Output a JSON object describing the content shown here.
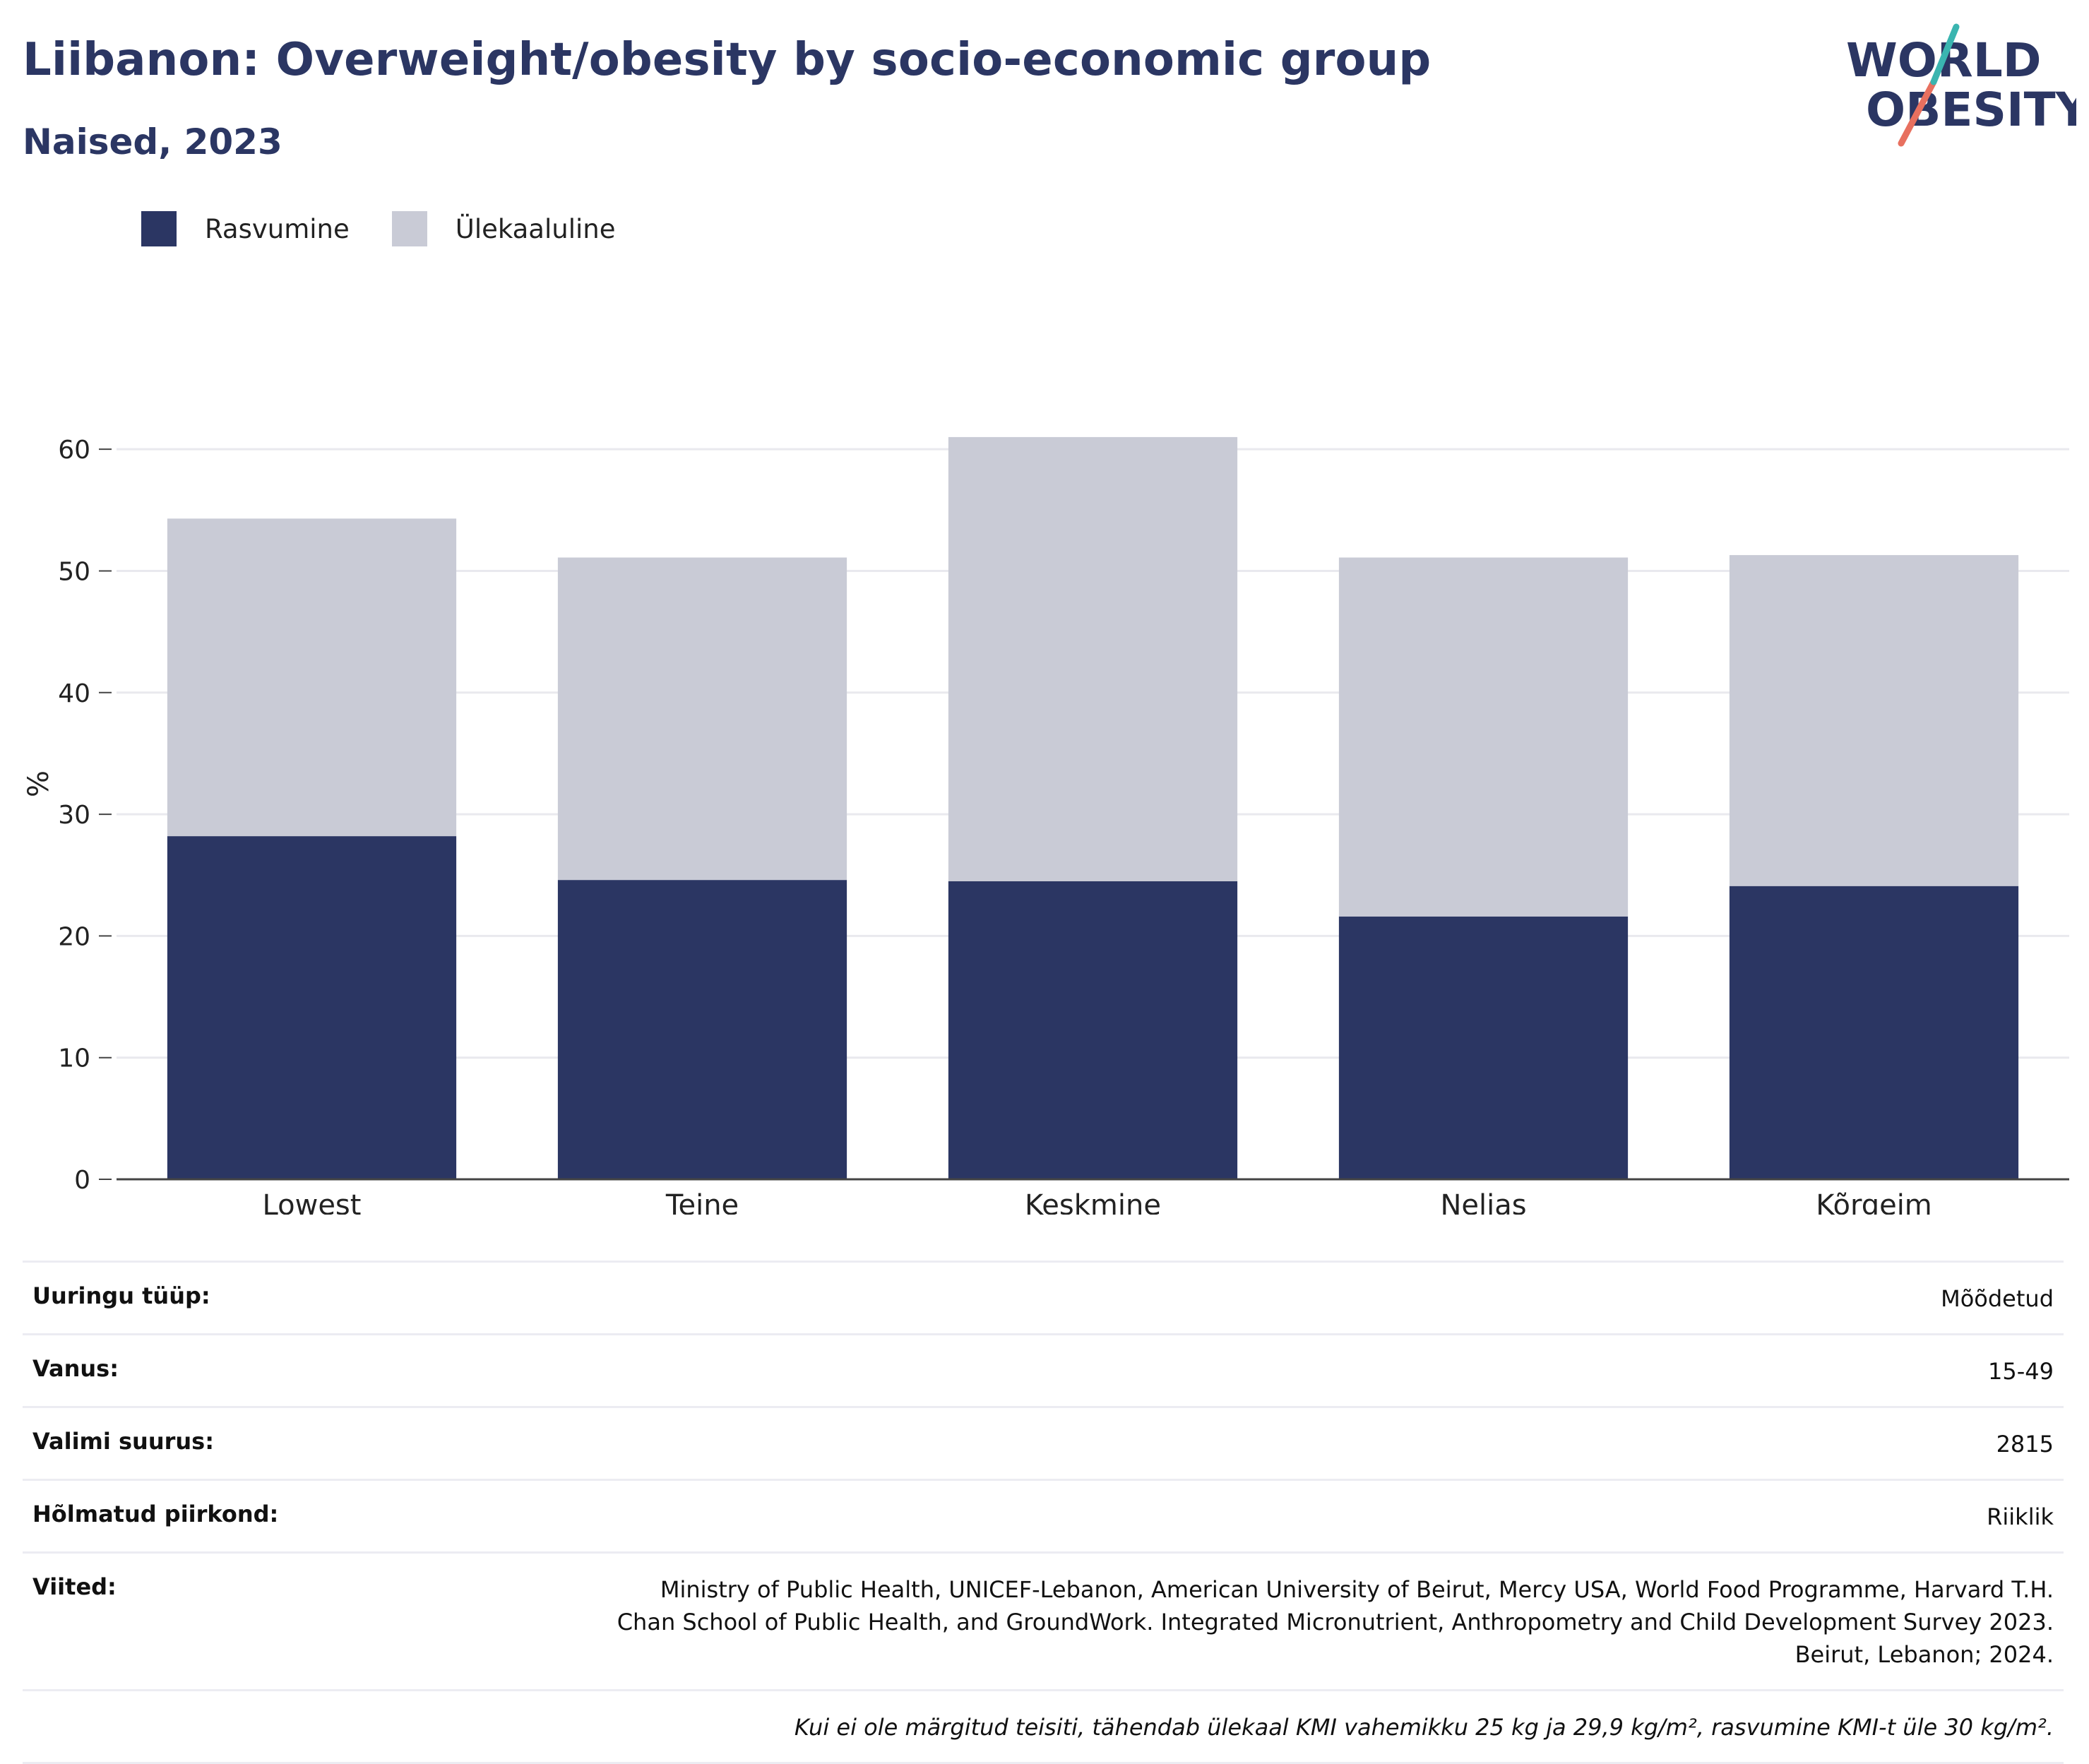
{
  "title": "Liibanon: Overweight/obesity by socio-economic group",
  "subtitle": "Naised, 2023",
  "logo": {
    "line1": "WORLD",
    "line2": "OBESITY",
    "accent_teal": "#3ab5b0",
    "accent_coral": "#e8705f",
    "color": "#2b3663"
  },
  "chart_data": {
    "type": "bar",
    "stacked": true,
    "categories": [
      "Lowest",
      "Teine",
      "Keskmine",
      "Neljas",
      "Kõrgeim"
    ],
    "series": [
      {
        "name": "Rasvumine",
        "color": "#2b3663",
        "values": [
          28.2,
          24.6,
          24.5,
          21.6,
          24.1
        ]
      },
      {
        "name": "Ülekaaluline",
        "color": "#c9cbd6",
        "values": [
          26.1,
          26.5,
          36.5,
          29.5,
          27.2
        ]
      }
    ],
    "ylabel": "%",
    "ylim": [
      0,
      65
    ],
    "yticks": [
      0,
      10,
      20,
      30,
      40,
      50,
      60
    ],
    "grid": true,
    "legend": "top-left"
  },
  "info": {
    "rows": [
      {
        "key": "Uuringu tüüp:",
        "value": "Mõõdetud"
      },
      {
        "key": "Vanus:",
        "value": "15-49"
      },
      {
        "key": "Valimi suurus:",
        "value": "2815"
      },
      {
        "key": "Hõlmatud piirkond:",
        "value": "Riiklik"
      }
    ],
    "references_key": "Viited:",
    "references_value": "Ministry of Public Health, UNICEF-Lebanon, American University of Beirut, Mercy USA, World Food Programme, Harvard T.H. Chan School of Public Health, and GroundWork. Integrated Micronutrient, Anthropometry and Child Development Survey 2023. Beirut, Lebanon; 2024.",
    "note": "Kui ei ole märgitud teisiti, tähendab ülekaal KMI vahemikku 25 kg ja 29,9 kg/m², rasvumine KMI-t üle 30 kg/m²."
  }
}
